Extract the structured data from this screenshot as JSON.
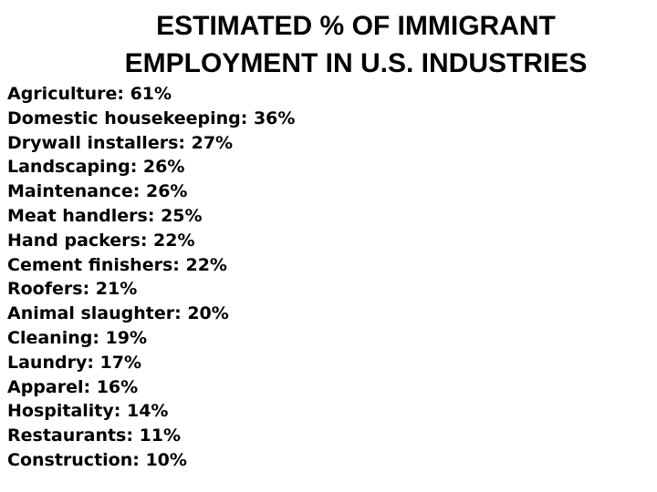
{
  "title": {
    "line1": "ESTIMATED % OF IMMIGRANT",
    "line2": "EMPLOYMENT IN U.S. INDUSTRIES"
  },
  "industries": [
    "Agriculture: 61%",
    "Domestic housekeeping: 36%",
    "Drywall installers: 27%",
    "Landscaping: 26%",
    "Maintenance: 26%",
    "Meat handlers: 25%",
    "Hand packers: 22%",
    "Cement finishers: 22%",
    "Roofers: 21%",
    "Animal slaughter: 20%",
    "Cleaning: 19%",
    "Laundry: 17%",
    "Apparel: 16%",
    "Hospitality: 14%",
    "Restaurants: 11%",
    "Construction: 10%"
  ]
}
